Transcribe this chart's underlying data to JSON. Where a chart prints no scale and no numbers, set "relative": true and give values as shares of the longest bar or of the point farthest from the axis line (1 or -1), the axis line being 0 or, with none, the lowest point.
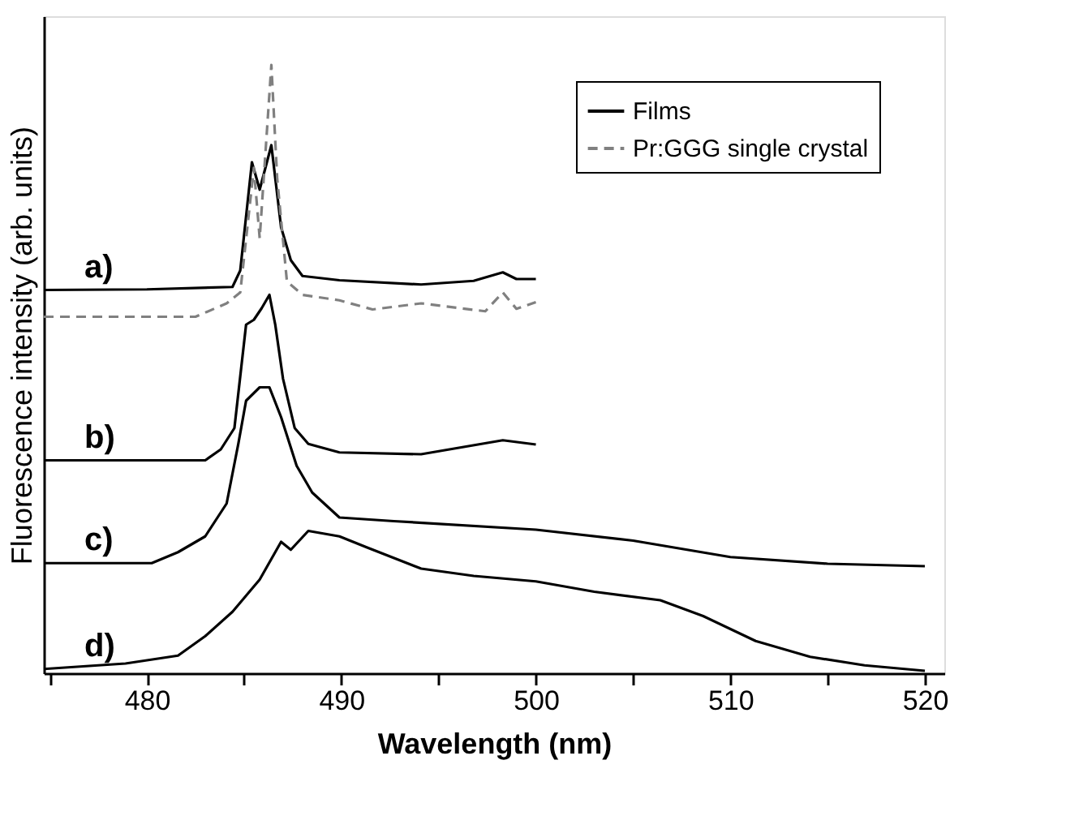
{
  "chart_data": {
    "type": "line",
    "xlabel": "Wavelength (nm)",
    "ylabel": "Fluorescence intensity (arb. units)",
    "relative": true,
    "xlim": [
      474.7,
      521
    ],
    "xticks": [
      {
        "value": 475,
        "label": null
      },
      480,
      {
        "value": 485,
        "label": null
      },
      490,
      {
        "value": 495,
        "label": null
      },
      500,
      {
        "value": 505,
        "label": null
      },
      510,
      {
        "value": 515,
        "label": null
      },
      520
    ],
    "legend": "top right",
    "grid": false,
    "line_style": "solid",
    "series": [
      {
        "name": "Films",
        "color": "#000000",
        "x": [
          474.7,
          480,
          484.4,
          484.8,
          485.4,
          485.8,
          486.4,
          486.9,
          487.4,
          488,
          489.9,
          494.1,
          496.8,
          498.3,
          499,
          500
        ],
        "values": [
          0.63,
          0.631,
          0.635,
          0.662,
          0.84,
          0.795,
          0.868,
          0.733,
          0.679,
          0.653,
          0.646,
          0.639,
          0.645,
          0.659,
          0.648,
          0.648
        ]
      },
      {
        "name": "Pr:GGG single crystal",
        "color": "#808080",
        "line_style": "dashed",
        "x": [
          474.7,
          482.5,
          484.1,
          484.8,
          485.5,
          485.8,
          486.4,
          486.7,
          487.2,
          488,
          489.9,
          491.6,
          494.1,
          497.4,
          498.3,
          499,
          500
        ],
        "values": [
          0.586,
          0.586,
          0.608,
          0.626,
          0.831,
          0.715,
          1.0,
          0.813,
          0.644,
          0.622,
          0.613,
          0.598,
          0.608,
          0.595,
          0.626,
          0.599,
          0.61
        ]
      },
      {
        "color": "#000000",
        "x": [
          474.7,
          483,
          483.8,
          484.5,
          485.1,
          485.5,
          485.9,
          486.3,
          486.6,
          487,
          487.6,
          488.3,
          489.9,
          494.1,
          498.3,
          500
        ],
        "values": [
          0.35,
          0.35,
          0.368,
          0.403,
          0.573,
          0.581,
          0.6,
          0.622,
          0.573,
          0.484,
          0.403,
          0.377,
          0.363,
          0.36,
          0.383,
          0.376
        ]
      },
      {
        "color": "#000000",
        "x": [
          474.7,
          480.25,
          481.6,
          483,
          484.1,
          484.7,
          485.1,
          485.8,
          486.3,
          486.9,
          487.7,
          488.5,
          489.9,
          492.7,
          500,
          505,
          510,
          515,
          520
        ],
        "values": [
          0.181,
          0.181,
          0.199,
          0.225,
          0.279,
          0.377,
          0.448,
          0.47,
          0.47,
          0.421,
          0.341,
          0.297,
          0.256,
          0.25,
          0.236,
          0.218,
          0.191,
          0.18,
          0.176
        ]
      },
      {
        "color": "#000000",
        "x": [
          474.7,
          478.9,
          481.6,
          483,
          484.4,
          485.8,
          486.9,
          487.4,
          488.3,
          489.9,
          491.3,
          494.1,
          496.8,
          500,
          503,
          506.4,
          508.6,
          511.3,
          514.1,
          516.9,
          520
        ],
        "values": [
          0.007,
          0.016,
          0.029,
          0.061,
          0.101,
          0.154,
          0.216,
          0.203,
          0.234,
          0.225,
          0.207,
          0.172,
          0.16,
          0.151,
          0.134,
          0.12,
          0.094,
          0.053,
          0.027,
          0.013,
          0.004
        ]
      }
    ],
    "annotations": [
      "a)",
      "b)",
      "c)",
      "d)"
    ]
  }
}
